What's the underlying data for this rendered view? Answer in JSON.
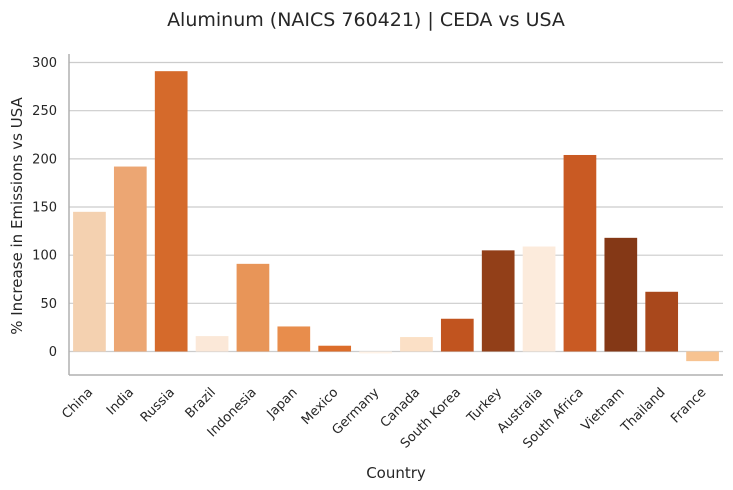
{
  "chart_data": {
    "type": "bar",
    "title": "Aluminum (NAICS 760421) | CEDA vs USA",
    "xlabel": "Country",
    "ylabel": "% Increase in Emissions vs USA",
    "ylim": [
      -25,
      308
    ],
    "yticks": [
      0,
      50,
      100,
      150,
      200,
      250,
      300
    ],
    "grid": "horizontal",
    "categories": [
      "China",
      "India",
      "Russia",
      "Brazil",
      "Indonesia",
      "Japan",
      "Mexico",
      "Germany",
      "Canada",
      "South Korea",
      "Turkey",
      "Australia",
      "South Africa",
      "Vietnam",
      "Thailand",
      "France"
    ],
    "values": [
      145,
      192,
      291,
      16,
      91,
      26,
      6,
      -2,
      15,
      34,
      105,
      109,
      204,
      118,
      62,
      -10
    ],
    "colors": [
      "#f4d1b0",
      "#eca673",
      "#d56a2b",
      "#fbe8d8",
      "#e89558",
      "#e88d4c",
      "#dc6d2a",
      "#fff3e8",
      "#fbe0c6",
      "#c1541f",
      "#923f18",
      "#fcebdc",
      "#c95a23",
      "#843816",
      "#a9481c",
      "#f7c391"
    ]
  }
}
